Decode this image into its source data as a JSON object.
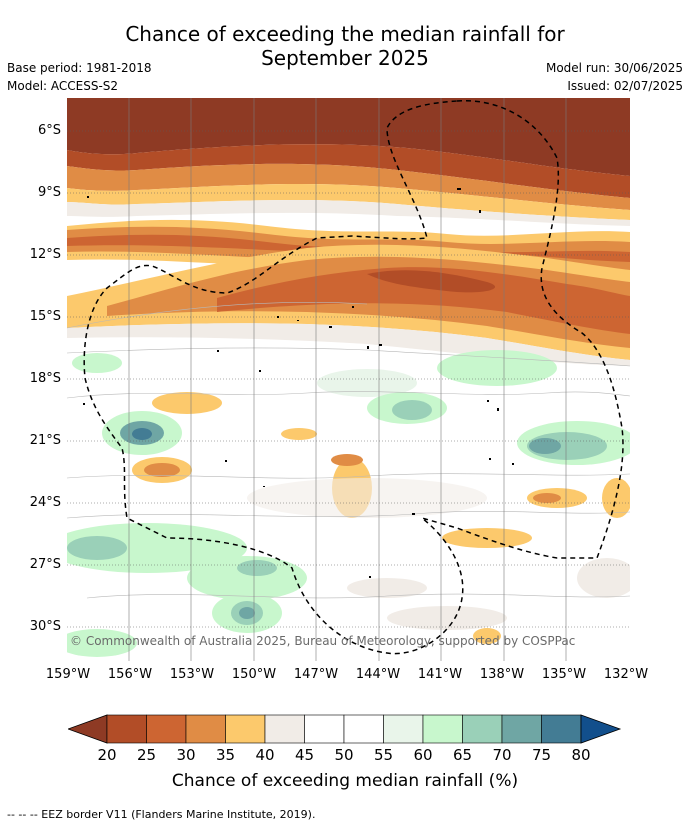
{
  "title": {
    "line1": "Chance of exceeding the median rainfall for",
    "line2": "September 2025"
  },
  "meta_left": {
    "base_period": "Base period: 1981-2018",
    "model": "Model: ACCESS-S2"
  },
  "meta_right": {
    "model_run": "Model run: 30/06/2025",
    "issued": "Issued: 02/07/2025"
  },
  "axes": {
    "latitude_labels": [
      "6°S",
      "9°S",
      "12°S",
      "15°S",
      "18°S",
      "21°S",
      "24°S",
      "27°S",
      "30°S"
    ],
    "longitude_labels": [
      "159°W",
      "156°W",
      "153°W",
      "150°W",
      "147°W",
      "144°W",
      "141°W",
      "138°W",
      "135°W",
      "132°W"
    ]
  },
  "copyright": "© Commonwealth of Australia 2025, Bureau of Meteorology, supported by COSPPac",
  "colorbar": {
    "title": "Chance of exceeding median rainfall (%)",
    "tick_labels": [
      "20",
      "25",
      "30",
      "35",
      "40",
      "45",
      "50",
      "55",
      "60",
      "65",
      "70",
      "75",
      "80"
    ],
    "colors": [
      "#8e3a24",
      "#b24d27",
      "#cd6532",
      "#e08c45",
      "#fcc96c",
      "#f1ece7",
      "#ffffff",
      "#ffffff",
      "#e9f5ea",
      "#c8f7cd",
      "#9ad0b8",
      "#6fa6a4",
      "#437c94",
      "#124f8c"
    ]
  },
  "footnote": "--  --  -- EEZ border V11 (Flanders Marine Institute, 2019)."
}
